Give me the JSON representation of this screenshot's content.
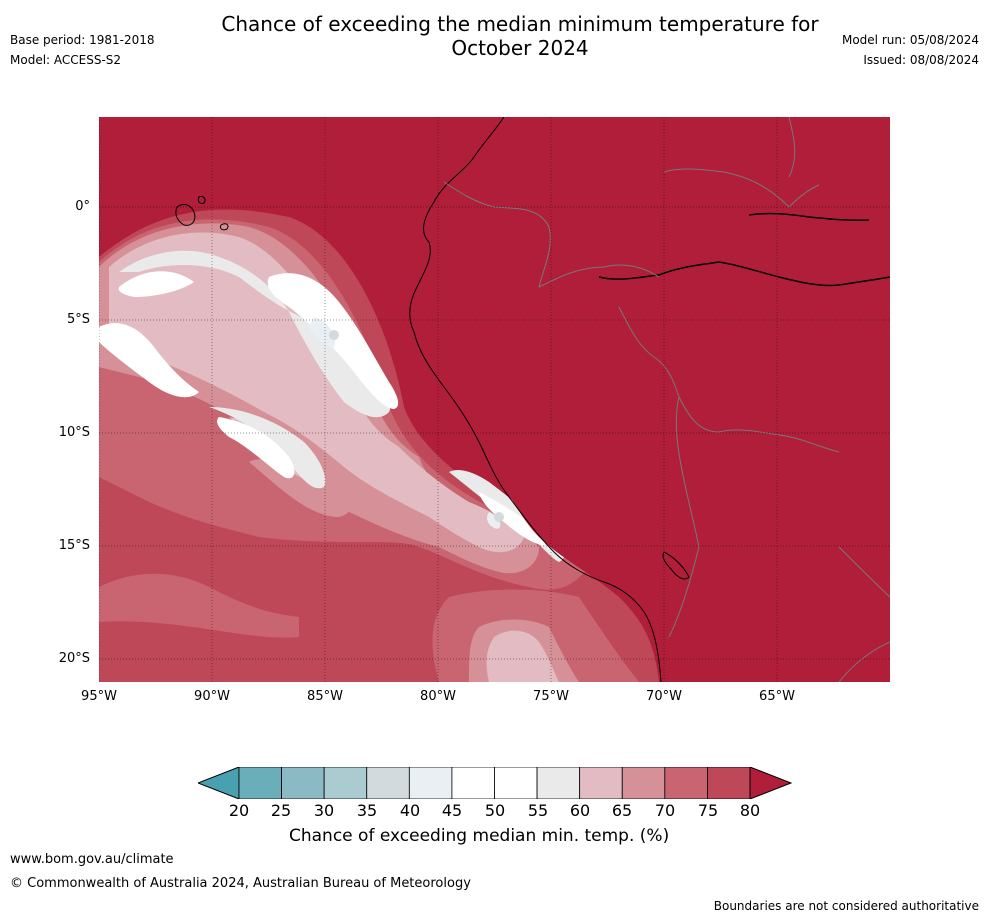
{
  "title_line1": "Chance of exceeding the median minimum temperature for",
  "title_line2": "October 2024",
  "base_period": "Base period: 1981-2018",
  "model": "Model: ACCESS-S2",
  "model_run": "Model run: 05/08/2024",
  "issued": "Issued: 08/08/2024",
  "lat_labels": [
    "0°",
    "5°S",
    "10°S",
    "15°S",
    "20°S"
  ],
  "lon_labels": [
    "95°W",
    "90°W",
    "85°W",
    "80°W",
    "75°W",
    "70°W",
    "65°W"
  ],
  "colorbar": {
    "ticks": [
      "20",
      "25",
      "30",
      "35",
      "40",
      "45",
      "50",
      "55",
      "60",
      "65",
      "70",
      "75",
      "80"
    ],
    "colors": [
      "#48a0b0",
      "#6aaeba",
      "#8bbac4",
      "#aacbd0",
      "#d2dadd",
      "#e9eff2",
      "#ffffff",
      "#ffffff",
      "#ebeaea",
      "#e2bcc2",
      "#d69097",
      "#c96571",
      "#be4857",
      "#b01e3a"
    ],
    "label": "Chance of exceeding median min. temp. (%)"
  },
  "footer_url": "www.bom.gov.au/climate",
  "copyright": "© Commonwealth of Australia 2024, Australian Bureau of Meteorology",
  "disclaimer": "Boundaries are not considered authoritative"
}
